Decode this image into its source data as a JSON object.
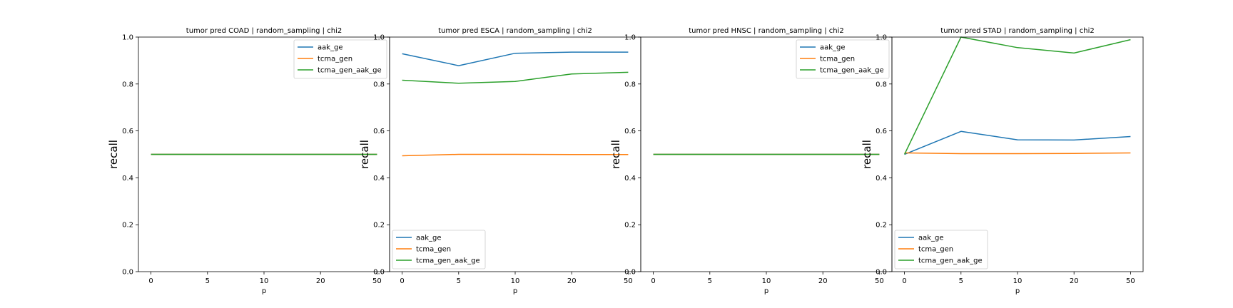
{
  "chart_data": [
    {
      "type": "line",
      "title": "tumor pred COAD | random_sampling | chi2",
      "xlabel": "p",
      "ylabel": "recall",
      "x": [
        0,
        5,
        10,
        20,
        50
      ],
      "xticks": [
        "0",
        "5",
        "10",
        "20",
        "50"
      ],
      "ylim": [
        0.0,
        1.0
      ],
      "yticks": [
        "0.0",
        "0.2",
        "0.4",
        "0.6",
        "0.8",
        "1.0"
      ],
      "legend_position": "upper right",
      "series": [
        {
          "name": "aak_ge",
          "color": "#1f77b4",
          "values": [
            0.5,
            0.5,
            0.5,
            0.5,
            0.5
          ]
        },
        {
          "name": "tcma_gen",
          "color": "#ff7f0e",
          "values": [
            0.5,
            0.5,
            0.5,
            0.5,
            0.5
          ]
        },
        {
          "name": "tcma_gen_aak_ge",
          "color": "#2ca02c",
          "values": [
            0.5,
            0.5,
            0.5,
            0.5,
            0.5
          ]
        }
      ]
    },
    {
      "type": "line",
      "title": "tumor pred ESCA | random_sampling | chi2",
      "xlabel": "p",
      "ylabel": "recall",
      "x": [
        0,
        5,
        10,
        20,
        50
      ],
      "xticks": [
        "0",
        "5",
        "10",
        "20",
        "50"
      ],
      "ylim": [
        0.0,
        1.0
      ],
      "yticks": [
        "0.0",
        "0.2",
        "0.4",
        "0.6",
        "0.8",
        "1.0"
      ],
      "legend_position": "lower left",
      "series": [
        {
          "name": "aak_ge",
          "color": "#1f77b4",
          "values": [
            0.929,
            0.878,
            0.931,
            0.936,
            0.936
          ]
        },
        {
          "name": "tcma_gen",
          "color": "#ff7f0e",
          "values": [
            0.494,
            0.5,
            0.5,
            0.499,
            0.499
          ]
        },
        {
          "name": "tcma_gen_aak_ge",
          "color": "#2ca02c",
          "values": [
            0.816,
            0.803,
            0.811,
            0.843,
            0.85
          ]
        }
      ]
    },
    {
      "type": "line",
      "title": "tumor pred HNSC | random_sampling | chi2",
      "xlabel": "p",
      "ylabel": "recall",
      "x": [
        0,
        5,
        10,
        20,
        50
      ],
      "xticks": [
        "0",
        "5",
        "10",
        "20",
        "50"
      ],
      "ylim": [
        0.0,
        1.0
      ],
      "yticks": [
        "0.0",
        "0.2",
        "0.4",
        "0.6",
        "0.8",
        "1.0"
      ],
      "legend_position": "upper right",
      "series": [
        {
          "name": "aak_ge",
          "color": "#1f77b4",
          "values": [
            0.5,
            0.5,
            0.5,
            0.5,
            0.5
          ]
        },
        {
          "name": "tcma_gen",
          "color": "#ff7f0e",
          "values": [
            0.5,
            0.5,
            0.5,
            0.5,
            0.5
          ]
        },
        {
          "name": "tcma_gen_aak_ge",
          "color": "#2ca02c",
          "values": [
            0.5,
            0.5,
            0.5,
            0.5,
            0.5
          ]
        }
      ]
    },
    {
      "type": "line",
      "title": "tumor pred STAD | random_sampling | chi2",
      "xlabel": "p",
      "ylabel": "recall",
      "x": [
        0,
        5,
        10,
        20,
        50
      ],
      "xticks": [
        "0",
        "5",
        "10",
        "20",
        "50"
      ],
      "ylim": [
        0.0,
        1.0
      ],
      "yticks": [
        "0.0",
        "0.2",
        "0.4",
        "0.6",
        "0.8",
        "1.0"
      ],
      "legend_position": "lower left",
      "series": [
        {
          "name": "aak_ge",
          "color": "#1f77b4",
          "values": [
            0.5,
            0.598,
            0.562,
            0.561,
            0.576
          ]
        },
        {
          "name": "tcma_gen",
          "color": "#ff7f0e",
          "values": [
            0.506,
            0.503,
            0.503,
            0.504,
            0.506
          ]
        },
        {
          "name": "tcma_gen_aak_ge",
          "color": "#2ca02c",
          "values": [
            0.5,
            1.0,
            0.955,
            0.932,
            0.989
          ]
        }
      ]
    }
  ]
}
